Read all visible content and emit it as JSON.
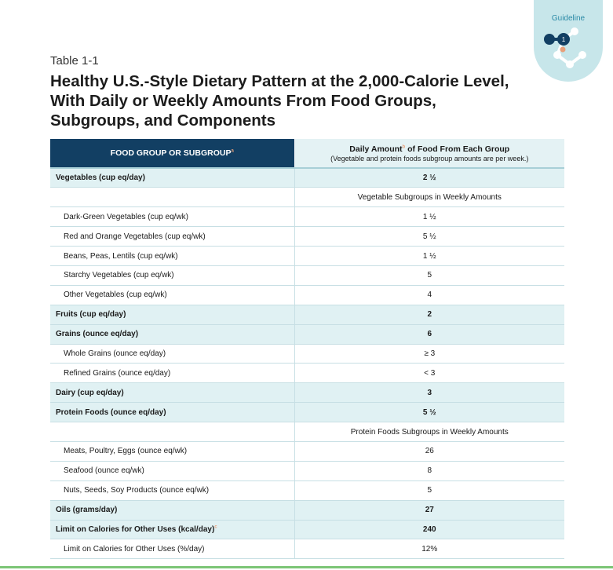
{
  "badge": {
    "label": "Guideline",
    "number": "1"
  },
  "table_label": "Table 1-1",
  "title": "Healthy U.S.-Style Dietary Pattern at the 2,000-Calorie Level, With Daily or Weekly Amounts From Food Groups, Subgroups, and Components",
  "header": {
    "col1": "FOOD GROUP OR SUBGROUP",
    "col1_sup": "a",
    "col2_a": "Daily Amount",
    "col2_sup": "b",
    "col2_b": " of Food From Each Group",
    "col2_sub": "(Vegetable and protein foods subgroup amounts are per week.)"
  },
  "rows": {
    "vegetables": {
      "name": "Vegetables (cup eq/day)",
      "value": "2 ½"
    },
    "veg_subgroups": {
      "value": "Vegetable Subgroups in Weekly Amounts"
    },
    "dark_green": {
      "name": "Dark-Green Vegetables (cup eq/wk)",
      "value": "1 ½"
    },
    "red_orange": {
      "name": "Red and Orange Vegetables (cup eq/wk)",
      "value": "5 ½"
    },
    "beans": {
      "name": "Beans, Peas, Lentils (cup eq/wk)",
      "value": "1 ½"
    },
    "starchy": {
      "name": "Starchy Vegetables (cup eq/wk)",
      "value": "5"
    },
    "other_veg": {
      "name": "Other Vegetables (cup eq/wk)",
      "value": "4"
    },
    "fruits": {
      "name": "Fruits (cup eq/day)",
      "value": "2"
    },
    "grains": {
      "name": "Grains (ounce eq/day)",
      "value": "6"
    },
    "whole_grains": {
      "name": "Whole Grains (ounce eq/day)",
      "value": "≥ 3"
    },
    "refined_grains": {
      "name": "Refined Grains (ounce eq/day)",
      "value": "< 3"
    },
    "dairy": {
      "name": "Dairy (cup eq/day)",
      "value": "3"
    },
    "protein": {
      "name": "Protein Foods (ounce eq/day)",
      "value": "5 ½"
    },
    "protein_subgroups": {
      "value": "Protein Foods Subgroups in Weekly Amounts"
    },
    "meats": {
      "name": "Meats, Poultry, Eggs (ounce eq/wk)",
      "value": "26"
    },
    "seafood": {
      "name": "Seafood (ounce eq/wk)",
      "value": "8"
    },
    "nuts": {
      "name": "Nuts, Seeds, Soy Products (ounce eq/wk)",
      "value": "5"
    },
    "oils": {
      "name": "Oils (grams/day)",
      "value": "27"
    },
    "limit_kcal": {
      "name": "Limit on Calories for Other Uses (kcal/day)",
      "sup": "c",
      "value": "240"
    },
    "limit_pct": {
      "name": "Limit on Calories for Other Uses (%/day)",
      "value": "12%"
    }
  },
  "colors": {
    "header_dark": "#123f63",
    "row_tint": "#e0f1f3",
    "badge_bg": "#c7e6ea",
    "accent_orange": "#e8a07a",
    "bottom_rule": "#7cc576"
  }
}
